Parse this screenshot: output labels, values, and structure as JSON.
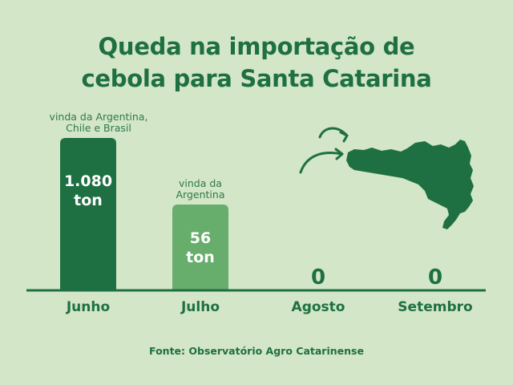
{
  "title": {
    "line1": "Queda na importação de",
    "line2": "cebola para Santa Catarina"
  },
  "source": "Fonte: Observatório Agro Catarinense",
  "colors": {
    "background": "#d3e6c7",
    "dark_green": "#1e7042",
    "light_green": "#67ad6b",
    "label_green": "#2f7a49"
  },
  "icons": [
    "santa-catarina-map-icon",
    "curved-arrow-icon"
  ],
  "chart_data": {
    "type": "bar",
    "categories": [
      "Junho",
      "Julho",
      "Agosto",
      "Setembro"
    ],
    "values": [
      1080,
      56,
      0,
      0
    ],
    "value_labels": [
      [
        "1.080",
        "ton"
      ],
      [
        "56",
        "ton"
      ],
      [
        "0"
      ],
      [
        "0"
      ]
    ],
    "annotations": [
      [
        "vinda da Argentina,",
        "Chile e Brasil"
      ],
      [
        "vinda da",
        "Argentina"
      ],
      [],
      []
    ],
    "bar_colors": [
      "#1e7042",
      "#67ad6b",
      "#1e7042",
      "#1e7042"
    ],
    "grid": false,
    "legend": "none"
  }
}
